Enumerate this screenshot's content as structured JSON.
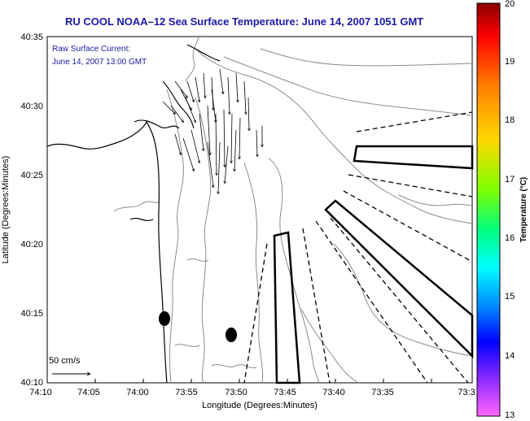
{
  "title": "RU COOL  NOAA–12  Sea Surface Temperature:  June 14, 2007 1051 GMT",
  "annotation": {
    "line1": "Raw Surface Current:",
    "line2": "June 14, 2007 13:00 GMT"
  },
  "scale_label": "50 cm/s",
  "x_axis": {
    "label": "Longitude (Degrees:Minutes)",
    "ticks": [
      "74:10",
      "74:05",
      "74:00",
      "73:55",
      "73:50",
      "73:45",
      "73:40",
      "73:35",
      "73:3"
    ]
  },
  "y_axis": {
    "label": "Latitude (Degrees:Minutes)",
    "ticks": [
      "40:35",
      "40:30",
      "40:25",
      "40:20",
      "40:15",
      "40:10"
    ]
  },
  "colorbar": {
    "label": "Temperature (°C)",
    "ticks": [
      "20",
      "19",
      "18",
      "17",
      "16",
      "15",
      "14",
      "13"
    ],
    "colors": [
      "#8b0000",
      "#ff0000",
      "#ff8c00",
      "#ffd700",
      "#7fff00",
      "#00ff7f",
      "#00ffff",
      "#007fff",
      "#0000ff",
      "#8a2be2",
      "#ff00ff"
    ]
  },
  "colors": {
    "title": "#1a1aa6",
    "contour": "#8c8c8c",
    "coast": "#000000"
  }
}
